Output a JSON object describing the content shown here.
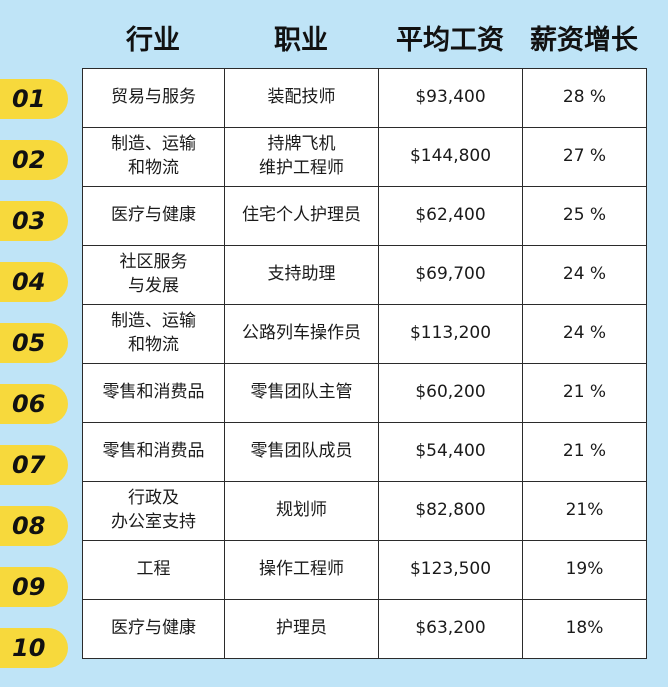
{
  "headers": {
    "industry": "行业",
    "occupation": "职业",
    "avg_salary": "平均工资",
    "salary_growth": "薪资增长"
  },
  "rows": [
    {
      "rank": "01",
      "industry": "贸易与服务",
      "occupation": "装配技师",
      "salary": "$93,400",
      "growth": "28 %"
    },
    {
      "rank": "02",
      "industry": "制造、运输\n和物流",
      "occupation": "持牌飞机\n维护工程师",
      "salary": "$144,800",
      "growth": "27 %"
    },
    {
      "rank": "03",
      "industry": "医疗与健康",
      "occupation": "住宅个人护理员",
      "salary": "$62,400",
      "growth": "25 %"
    },
    {
      "rank": "04",
      "industry": "社区服务\n与发展",
      "occupation": "支持助理",
      "salary": "$69,700",
      "growth": "24 %"
    },
    {
      "rank": "05",
      "industry": "制造、运输\n和物流",
      "occupation": "公路列车操作员",
      "salary": "$113,200",
      "growth": "24 %"
    },
    {
      "rank": "06",
      "industry": "零售和消费品",
      "occupation": "零售团队主管",
      "salary": "$60,200",
      "growth": "21 %"
    },
    {
      "rank": "07",
      "industry": "零售和消费品",
      "occupation": "零售团队成员",
      "salary": "$54,400",
      "growth": "21 %"
    },
    {
      "rank": "08",
      "industry": "行政及\n办公室支持",
      "occupation": "规划师",
      "salary": "$82,800",
      "growth": "21%"
    },
    {
      "rank": "09",
      "industry": "工程",
      "occupation": "操作工程师",
      "salary": "$123,500",
      "growth": "19%"
    },
    {
      "rank": "10",
      "industry": "医疗与健康",
      "occupation": "护理员",
      "salary": "$63,200",
      "growth": "18%"
    }
  ],
  "colors": {
    "background": "#bfe4f7",
    "badge": "#f7d93c",
    "table_bg": "#ffffff",
    "border": "#2b2b2b"
  }
}
